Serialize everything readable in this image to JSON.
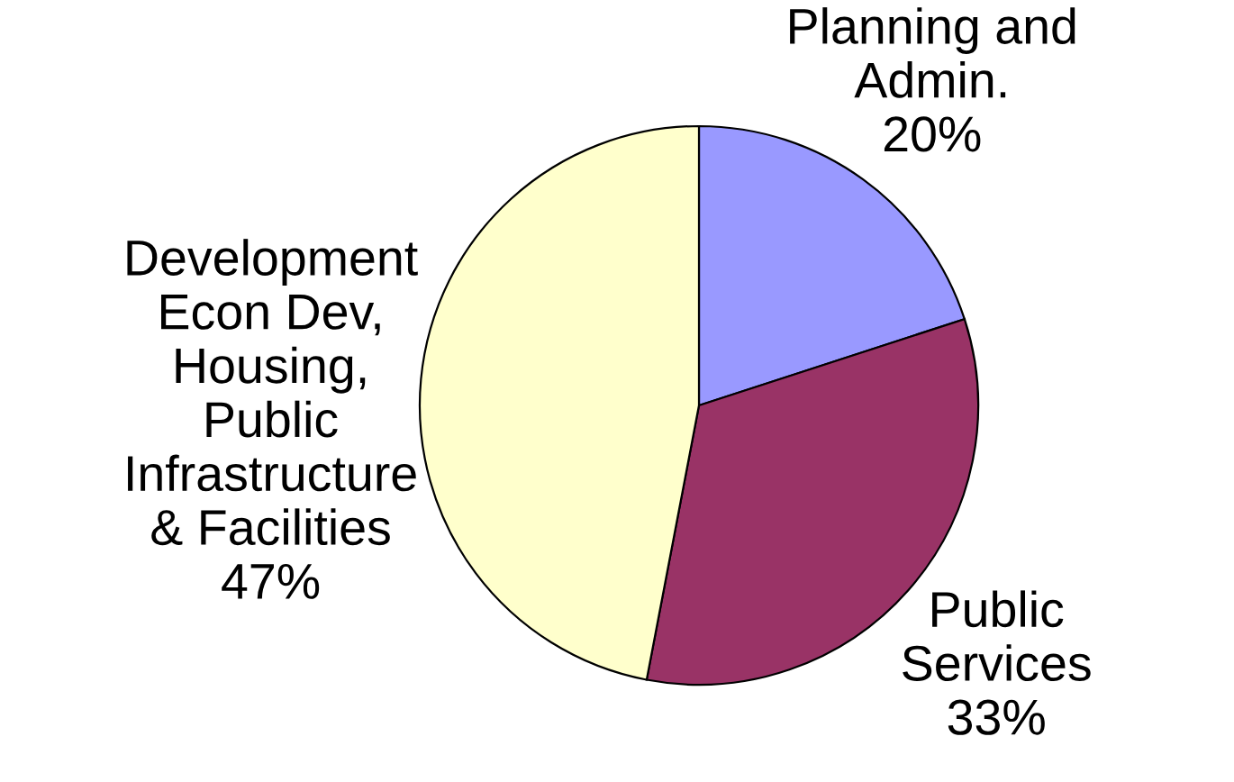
{
  "chart_data": {
    "type": "pie",
    "categories": [
      "Planning and\nAdmin.",
      "Public\nServices",
      "Development\nEcon Dev,\nHousing,\nPublic\nInfrastructure\n& Facilities"
    ],
    "values": [
      20,
      33,
      47
    ],
    "colors": [
      "#9999ff",
      "#993366",
      "#ffffcc"
    ],
    "value_labels": [
      "20%",
      "33%",
      "47%"
    ]
  }
}
